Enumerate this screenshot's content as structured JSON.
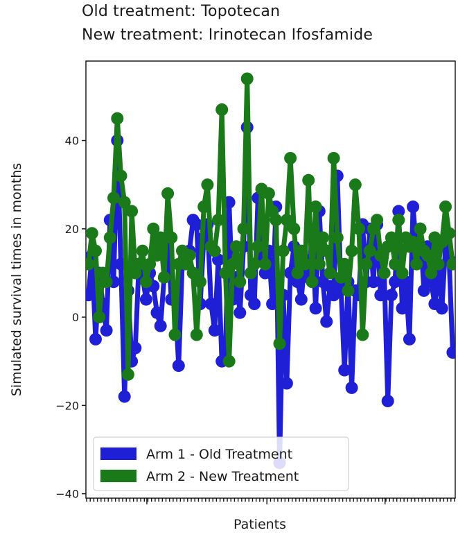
{
  "chart_data": {
    "type": "line",
    "title_lines": [
      "Old treatment: Topotecan",
      "New treatment: Irinotecan Ifosfamide"
    ],
    "xlabel": "Patients",
    "ylabel": "Simulated survival times in months",
    "ylim": [
      -41,
      58
    ],
    "yticks": [
      -40,
      -20,
      0,
      20,
      40
    ],
    "ytick_labels": [
      "−40",
      "−20",
      "0",
      "20",
      "40"
    ],
    "x_ticks_labeled": false,
    "grid": false,
    "legend_position": "lower-left",
    "series": [
      {
        "name": "Arm 1 - Old Treatment",
        "color": "#1f1fd6",
        "values": [
          5,
          14,
          -5,
          10,
          3,
          -3,
          22,
          8,
          40,
          12,
          -18,
          6,
          -10,
          -7,
          12,
          9,
          4,
          10,
          7,
          1,
          -2,
          9,
          17,
          4,
          5,
          -11,
          12,
          14,
          15,
          22,
          21,
          3,
          18,
          21,
          3,
          -3,
          13,
          -10,
          -8,
          26,
          4,
          9,
          1,
          16,
          43,
          5,
          3,
          27,
          14,
          10,
          15,
          3,
          25,
          -33,
          5,
          -15,
          10,
          16,
          8,
          4,
          13,
          9,
          19,
          2,
          24,
          8,
          -1,
          7,
          5,
          32,
          7,
          -12,
          8,
          -16,
          6,
          5,
          21,
          8,
          20,
          8,
          21,
          5,
          10,
          -19,
          5,
          8,
          24,
          2,
          8,
          -5,
          25,
          15,
          20,
          6,
          16,
          8,
          3,
          10,
          2,
          16,
          13,
          -8
        ]
      },
      {
        "name": "Arm 2 - New Treatment",
        "color": "#1a7a1a",
        "values": [
          12,
          19,
          15,
          0,
          10,
          8,
          18,
          27,
          45,
          32,
          26,
          -13,
          24,
          10,
          12,
          15,
          8,
          12,
          20,
          14,
          18,
          9,
          28,
          18,
          -4,
          12,
          15,
          12,
          14,
          10,
          -4,
          8,
          25,
          30,
          16,
          15,
          22,
          47,
          10,
          -10,
          12,
          16,
          8,
          20,
          54,
          10,
          12,
          16,
          29,
          12,
          28,
          24,
          22,
          -6,
          15,
          22,
          36,
          20,
          10,
          15,
          12,
          31,
          8,
          25,
          12,
          18,
          15,
          10,
          36,
          18,
          9,
          12,
          6,
          15,
          30,
          20,
          -4,
          12,
          15,
          20,
          22,
          14,
          10,
          16,
          18,
          12,
          22,
          10,
          18,
          16,
          17,
          12,
          20,
          15,
          14,
          10,
          18,
          12,
          17,
          25,
          19,
          12
        ]
      }
    ]
  }
}
